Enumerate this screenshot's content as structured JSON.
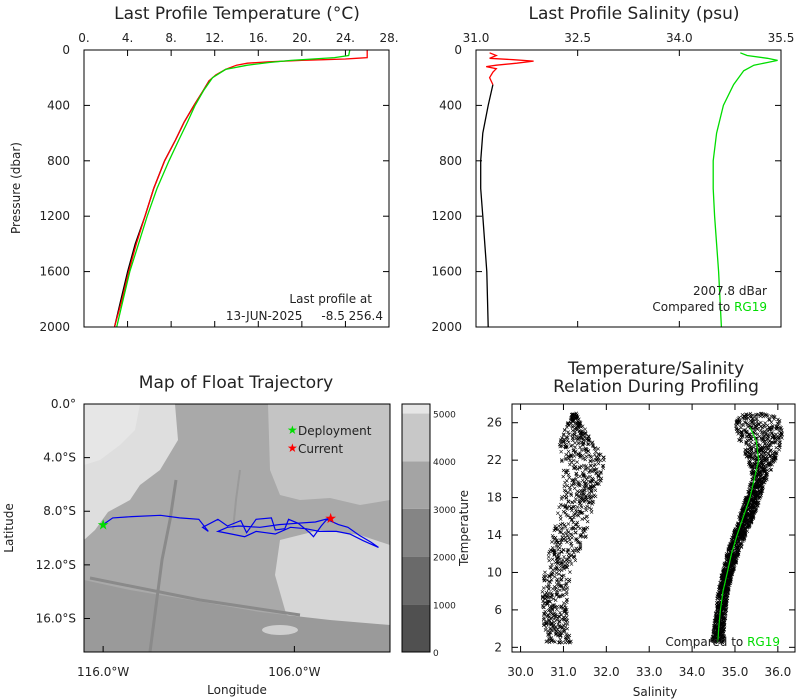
{
  "colors": {
    "obs": "#000000",
    "current": "#ff0000",
    "climatology": "#00dd00",
    "trajectory": "#0000ee",
    "frame": "#000000"
  },
  "chart_data": [
    {
      "id": "temperature",
      "type": "line",
      "title": "Last Profile Temperature (°C)",
      "ylabel": "Pressure (dbar)",
      "xlim": [
        0,
        28
      ],
      "ylim": [
        0,
        2000
      ],
      "y_inverted": true,
      "x_axis_position": "top",
      "xticks": [
        "0.",
        "4.",
        "8.",
        "12.",
        "16.",
        "20.",
        "24.",
        "28."
      ],
      "xtick_values": [
        0,
        4,
        8,
        12,
        16,
        20,
        24,
        28
      ],
      "yticks": [
        "0",
        "400",
        "800",
        "1200",
        "1600",
        "2000"
      ],
      "ytick_values": [
        0,
        400,
        800,
        1200,
        1600,
        2000
      ],
      "annotation_line1": "Last profile at",
      "annotation_line2": "13-JUN-2025     -8.5 256.4",
      "series": [
        {
          "color": "obs",
          "points": [
            [
              11.5,
              220
            ],
            [
              10.9,
              300
            ],
            [
              10.1,
              400
            ],
            [
              9.2,
              520
            ],
            [
              8.4,
              650
            ],
            [
              7.4,
              800
            ],
            [
              6.4,
              1000
            ],
            [
              5.6,
              1200
            ],
            [
              4.7,
              1400
            ],
            [
              4.0,
              1600
            ],
            [
              3.4,
              1800
            ],
            [
              2.8,
              2000
            ]
          ]
        },
        {
          "color": "current",
          "points": [
            [
              26.0,
              0
            ],
            [
              26.0,
              55
            ],
            [
              25.0,
              60
            ],
            [
              24.0,
              65
            ],
            [
              22.0,
              70
            ],
            [
              20.0,
              75
            ],
            [
              17.0,
              85
            ],
            [
              15.0,
              95
            ],
            [
              14.0,
              110
            ],
            [
              13.0,
              140
            ],
            [
              12.1,
              180
            ],
            [
              11.5,
              220
            ],
            [
              10.9,
              300
            ],
            [
              10.1,
              400
            ],
            [
              9.2,
              520
            ],
            [
              8.4,
              650
            ],
            [
              7.4,
              800
            ],
            [
              6.4,
              1000
            ],
            [
              5.6,
              1200
            ],
            [
              4.8,
              1400
            ],
            [
              4.1,
              1600
            ],
            [
              3.5,
              1800
            ],
            [
              2.8,
              2000
            ]
          ]
        },
        {
          "color": "climatology",
          "points": [
            [
              24.4,
              0
            ],
            [
              24.3,
              40
            ],
            [
              23.0,
              55
            ],
            [
              21.0,
              65
            ],
            [
              19.0,
              75
            ],
            [
              17.0,
              90
            ],
            [
              15.0,
              110
            ],
            [
              13.0,
              140
            ],
            [
              11.8,
              200
            ],
            [
              11.0,
              290
            ],
            [
              10.2,
              400
            ],
            [
              9.5,
              520
            ],
            [
              8.7,
              650
            ],
            [
              7.8,
              800
            ],
            [
              6.7,
              1000
            ],
            [
              5.8,
              1200
            ],
            [
              5.0,
              1400
            ],
            [
              4.2,
              1600
            ],
            [
              3.6,
              1800
            ],
            [
              3.0,
              2000
            ]
          ]
        }
      ]
    },
    {
      "id": "salinity",
      "type": "line",
      "title": "Last Profile Salinity (psu)",
      "xlim": [
        31.0,
        35.5
      ],
      "ylim": [
        0,
        2000
      ],
      "y_inverted": true,
      "x_axis_position": "top",
      "xticks": [
        "31.0",
        "32.5",
        "34.0",
        "35.5"
      ],
      "xtick_values": [
        31.0,
        32.5,
        34.0,
        35.5
      ],
      "yticks": [
        "0",
        "400",
        "800",
        "1200",
        "1600",
        "2000"
      ],
      "ytick_values": [
        0,
        400,
        800,
        1200,
        1600,
        2000
      ],
      "annotation_line1": "2007.8 dBar",
      "annotation_prefix": "Compared to ",
      "annotation_ref": "RG19",
      "series": [
        {
          "color": "obs",
          "points": [
            [
              31.25,
              250
            ],
            [
              31.18,
              400
            ],
            [
              31.1,
              600
            ],
            [
              31.07,
              800
            ],
            [
              31.07,
              1000
            ],
            [
              31.1,
              1200
            ],
            [
              31.13,
              1400
            ],
            [
              31.16,
              1600
            ],
            [
              31.17,
              1800
            ],
            [
              31.18,
              2000
            ]
          ]
        },
        {
          "color": "current",
          "points": [
            [
              31.2,
              20
            ],
            [
              31.3,
              40
            ],
            [
              31.2,
              60
            ],
            [
              31.55,
              70
            ],
            [
              31.85,
              80
            ],
            [
              31.6,
              95
            ],
            [
              31.3,
              110
            ],
            [
              31.15,
              120
            ],
            [
              31.3,
              135
            ],
            [
              31.25,
              160
            ],
            [
              31.2,
              200
            ],
            [
              31.25,
              250
            ]
          ]
        },
        {
          "color": "climatology",
          "points": [
            [
              34.9,
              20
            ],
            [
              35.0,
              40
            ],
            [
              35.3,
              60
            ],
            [
              35.45,
              75
            ],
            [
              35.3,
              90
            ],
            [
              35.1,
              110
            ],
            [
              34.95,
              150
            ],
            [
              34.8,
              250
            ],
            [
              34.65,
              400
            ],
            [
              34.55,
              600
            ],
            [
              34.5,
              800
            ],
            [
              34.5,
              1000
            ],
            [
              34.52,
              1200
            ],
            [
              34.55,
              1400
            ],
            [
              34.58,
              1600
            ],
            [
              34.6,
              1800
            ],
            [
              34.62,
              2000
            ]
          ]
        }
      ]
    },
    {
      "id": "trajectory",
      "type": "scatter",
      "title": "Map of Float Trajectory",
      "xlabel": "Longitude",
      "ylabel": "Latitude",
      "xlim": [
        -117,
        -101
      ],
      "ylim": [
        -18.5,
        0
      ],
      "xticks": [
        "116.0°W",
        "106.0°W"
      ],
      "xtick_values": [
        -116,
        -106
      ],
      "yticks": [
        "0.0°",
        "4.0°S",
        "8.0°S",
        "12.0°S",
        "16.0°S"
      ],
      "ytick_values": [
        0,
        -4,
        -8,
        -12,
        -16
      ],
      "legend": [
        {
          "label": "Deployment",
          "color": "climatology"
        },
        {
          "label": "Current",
          "color": "current"
        }
      ],
      "deployment": [
        -116.0,
        -9.0
      ],
      "current": [
        -104.1,
        -8.5
      ],
      "colorbar_ticks": [
        "0",
        "1000",
        "2000",
        "3000",
        "4000",
        "5000"
      ],
      "colorbar_values": [
        0,
        1000,
        2000,
        3000,
        4000,
        5000
      ],
      "track": [
        [
          -116.0,
          -9.0
        ],
        [
          -115.5,
          -8.5
        ],
        [
          -114.5,
          -8.4
        ],
        [
          -113.0,
          -8.3
        ],
        [
          -112.0,
          -8.5
        ],
        [
          -111.0,
          -8.6
        ],
        [
          -110.5,
          -9.5
        ],
        [
          -110.8,
          -9.2
        ],
        [
          -110.0,
          -8.6
        ],
        [
          -109.5,
          -9.1
        ],
        [
          -108.8,
          -8.7
        ],
        [
          -108.5,
          -9.6
        ],
        [
          -108.0,
          -8.6
        ],
        [
          -107.2,
          -8.5
        ],
        [
          -107.0,
          -9.4
        ],
        [
          -106.5,
          -9.3
        ],
        [
          -106.3,
          -8.6
        ],
        [
          -105.8,
          -8.9
        ],
        [
          -105.2,
          -9.6
        ],
        [
          -105.0,
          -9.9
        ],
        [
          -104.6,
          -9.1
        ],
        [
          -104.3,
          -8.6
        ],
        [
          -103.7,
          -9.0
        ],
        [
          -103.2,
          -9.2
        ],
        [
          -102.6,
          -9.8
        ],
        [
          -102.0,
          -10.3
        ],
        [
          -101.6,
          -10.7
        ],
        [
          -102.4,
          -10.2
        ],
        [
          -103.1,
          -9.7
        ],
        [
          -103.8,
          -9.5
        ],
        [
          -104.7,
          -9.5
        ],
        [
          -105.4,
          -9.3
        ],
        [
          -106.2,
          -9.2
        ],
        [
          -107.0,
          -9.7
        ],
        [
          -107.5,
          -9.6
        ],
        [
          -108.0,
          -9.5
        ],
        [
          -108.6,
          -9.9
        ],
        [
          -109.3,
          -9.7
        ],
        [
          -110.0,
          -9.5
        ],
        [
          -109.5,
          -9.2
        ],
        [
          -108.9,
          -9.1
        ],
        [
          -107.8,
          -9.2
        ],
        [
          -106.8,
          -9.0
        ],
        [
          -105.9,
          -8.9
        ],
        [
          -104.9,
          -8.8
        ],
        [
          -104.1,
          -8.5
        ]
      ]
    },
    {
      "id": "ts_relation",
      "type": "scatter",
      "title": "Temperature/Salinity",
      "subtitle": "Relation During Profiling",
      "xlabel": "Salinity",
      "ylabel": "Temperature",
      "xlim": [
        29.8,
        36.4
      ],
      "ylim": [
        1.5,
        28
      ],
      "xticks": [
        "30.0",
        "31.0",
        "32.0",
        "33.0",
        "34.0",
        "35.0",
        "36.0"
      ],
      "xtick_values": [
        30,
        31,
        32,
        33,
        34,
        35,
        36
      ],
      "yticks": [
        "2",
        "6",
        "10",
        "14",
        "18",
        "22",
        "26"
      ],
      "ytick_values": [
        2,
        6,
        10,
        14,
        18,
        22,
        26
      ],
      "annotation_prefix": "Compared to ",
      "annotation_ref": "RG19",
      "fresh_cloud": {
        "temperature": [
          2.5,
          4,
          6,
          8,
          10,
          12,
          14,
          16,
          18,
          20,
          22,
          24,
          26,
          27
        ],
        "sal_min": [
          30.6,
          30.55,
          30.5,
          30.5,
          30.55,
          30.65,
          30.75,
          30.85,
          30.95,
          31.0,
          30.95,
          30.9,
          31.1,
          31.2
        ],
        "sal_max": [
          31.2,
          31.15,
          31.1,
          31.1,
          31.2,
          31.35,
          31.55,
          31.65,
          31.75,
          31.9,
          32.0,
          31.7,
          31.4,
          31.3
        ]
      },
      "salty_cloud": {
        "temperature": [
          2.5,
          4,
          6,
          8,
          10,
          12,
          14,
          16,
          18,
          20,
          22,
          24,
          26,
          27
        ],
        "sal_min": [
          34.45,
          34.5,
          34.55,
          34.6,
          34.7,
          34.8,
          34.95,
          35.1,
          35.25,
          35.4,
          35.3,
          35.1,
          35.0,
          35.1
        ],
        "sal_max": [
          34.75,
          34.75,
          34.8,
          34.85,
          34.95,
          35.1,
          35.25,
          35.45,
          35.6,
          35.75,
          35.95,
          36.1,
          36.1,
          35.9
        ]
      },
      "climatology": [
        [
          34.6,
          2.5
        ],
        [
          34.62,
          4
        ],
        [
          34.66,
          6
        ],
        [
          34.72,
          8
        ],
        [
          34.82,
          10
        ],
        [
          34.92,
          12
        ],
        [
          35.05,
          14
        ],
        [
          35.2,
          16
        ],
        [
          35.35,
          18
        ],
        [
          35.45,
          20
        ],
        [
          35.55,
          22
        ],
        [
          35.5,
          24
        ],
        [
          35.35,
          25.5
        ]
      ]
    }
  ]
}
